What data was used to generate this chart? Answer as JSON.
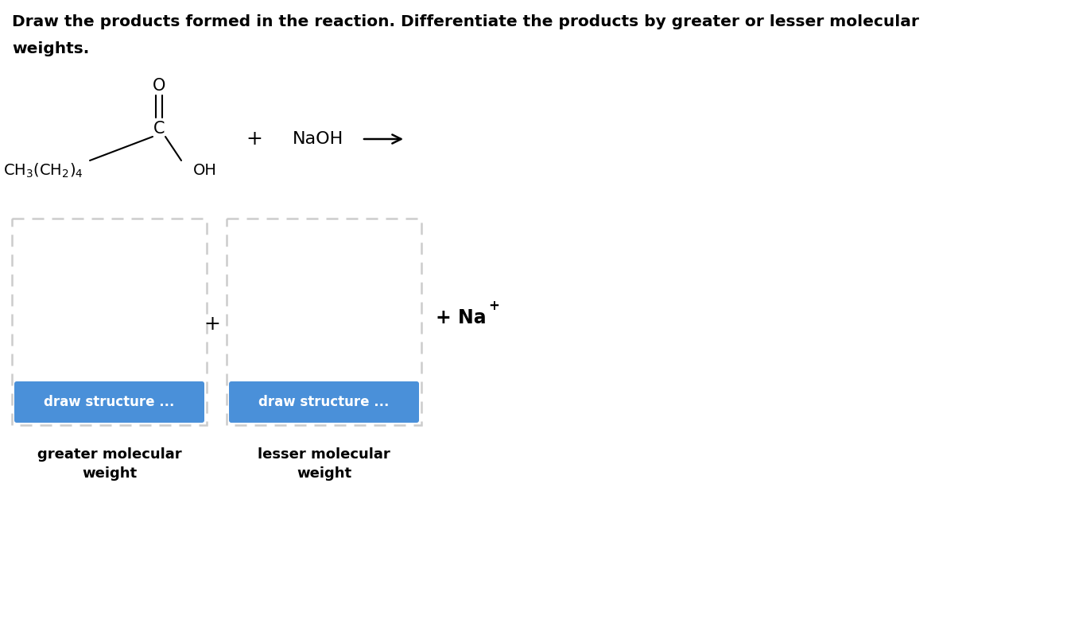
{
  "title_line1": "Draw the products formed in the reaction. Differentiate the products by greater or lesser molecular",
  "title_line2": "weights.",
  "title_fontsize": 14.5,
  "bg_color": "#ffffff",
  "btn_color": "#4a90d9",
  "btn_text": "draw structure ...",
  "btn_text_color": "#ffffff",
  "btn_fontsize": 12,
  "label1": "greater molecular\nweight",
  "label2": "lesser molecular\nweight",
  "label_fontsize": 13,
  "box_dash_color": "#cccccc",
  "na_fontsize": 17,
  "naoh_fontsize": 16
}
